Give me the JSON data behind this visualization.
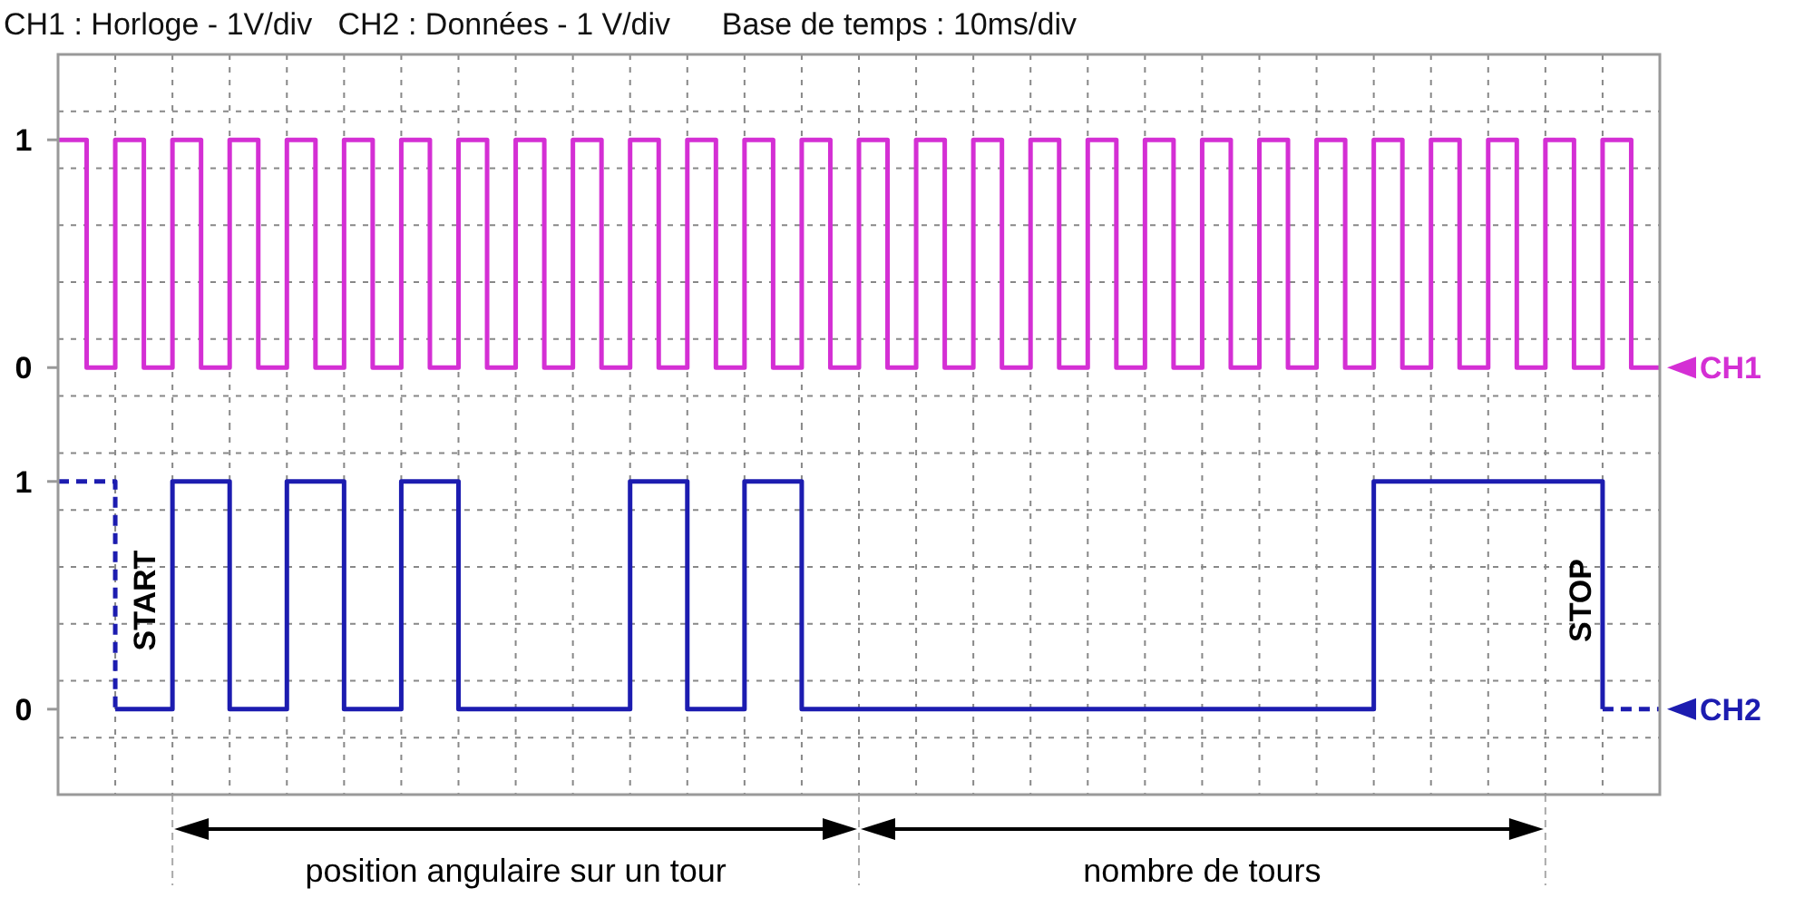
{
  "chart_data": [
    {
      "type": "step",
      "title": "CH1 : Horloge - 1V/div   CH2 : Données - 1 V/div      Base de temps : 10ms/div",
      "categories": [
        null,
        null,
        null,
        null,
        null,
        null,
        null,
        null,
        null,
        null,
        null,
        null,
        null,
        null,
        null,
        null,
        null,
        null,
        null,
        null,
        null,
        null,
        null,
        null,
        null,
        null,
        null,
        null,
        null,
        null,
        null,
        null,
        null,
        null,
        null,
        null,
        null,
        null,
        null,
        null,
        null,
        null,
        null,
        null,
        null,
        null,
        null,
        null,
        null,
        null,
        null,
        null,
        null,
        null,
        null,
        null,
        null
      ],
      "ylim": [
        -0.25,
        1.375
      ],
      "yticks": [
        {
          "value": 1.125,
          "label": null
        },
        {
          "value": 1,
          "label": "1"
        },
        {
          "value": 0.875,
          "label": null
        },
        {
          "value": 0.625,
          "label": null
        },
        {
          "value": 0.375,
          "label": null
        },
        {
          "value": 0.125,
          "label": null
        },
        {
          "value": 0,
          "label": "0"
        },
        {
          "value": -0.125,
          "label": null
        }
      ],
      "grid": true,
      "tick_labels": "y",
      "series": [
        {
          "name": "CH1",
          "color": "#d42fd4",
          "values": [
            1,
            0,
            1,
            0,
            1,
            0,
            1,
            0,
            1,
            0,
            1,
            0,
            1,
            0,
            1,
            0,
            1,
            0,
            1,
            0,
            1,
            0,
            1,
            0,
            1,
            0,
            1,
            0,
            1,
            0,
            1,
            0,
            1,
            0,
            1,
            0,
            1,
            0,
            1,
            0,
            1,
            0,
            1,
            0,
            1,
            0,
            1,
            0,
            1,
            0,
            1,
            0,
            1,
            0,
            1,
            0,
            0
          ]
        }
      ]
    },
    {
      "type": "step",
      "categories": [
        null,
        null,
        null,
        null,
        null,
        null,
        null,
        null,
        null,
        null,
        null,
        null,
        null,
        null,
        null,
        null,
        null,
        null,
        null,
        null,
        null,
        null,
        null,
        null,
        null,
        null,
        null,
        null,
        null,
        null,
        null,
        null,
        null,
        null,
        null,
        null,
        null,
        null,
        null,
        null,
        null,
        null,
        null,
        null,
        null,
        null,
        null,
        null,
        null,
        null,
        null,
        null,
        null,
        null,
        null,
        null,
        null
      ],
      "ylim": [
        -0.375,
        1.25
      ],
      "yticks": [
        {
          "value": 1.125,
          "label": null
        },
        {
          "value": 1,
          "label": "1"
        },
        {
          "value": 0.875,
          "label": null
        },
        {
          "value": 0.625,
          "label": null
        },
        {
          "value": 0.375,
          "label": null
        },
        {
          "value": 0.125,
          "label": null
        },
        {
          "value": 0,
          "label": "0"
        },
        {
          "value": -0.125,
          "label": null
        }
      ],
      "grid": true,
      "tick_labels": "y",
      "series": [
        {
          "name": "CH2",
          "color": "#1c1cb0",
          "values": [
            null,
            null,
            0,
            0,
            1,
            1,
            0,
            0,
            1,
            1,
            0,
            0,
            1,
            1,
            0,
            0,
            0,
            0,
            0,
            0,
            1,
            1,
            0,
            0,
            1,
            1,
            0,
            0,
            0,
            0,
            0,
            0,
            0,
            0,
            0,
            0,
            0,
            0,
            0,
            0,
            0,
            0,
            0,
            0,
            0,
            0,
            1,
            1,
            1,
            1,
            1,
            1,
            1,
            1,
            0,
            null,
            null
          ]
        },
        {
          "color": "#1c1cb0",
          "line_style": "dashed",
          "values": [
            1,
            1,
            0,
            null,
            null,
            null,
            null,
            null,
            null,
            null,
            null,
            null,
            null,
            null,
            null,
            null,
            null,
            null,
            null,
            null,
            null,
            null,
            null,
            null,
            null,
            null,
            null,
            null,
            null,
            null,
            null,
            null,
            null,
            null,
            null,
            null,
            null,
            null,
            null,
            null,
            null,
            null,
            null,
            null,
            null,
            null,
            null,
            null,
            null,
            null,
            null,
            null,
            null,
            null,
            null,
            null,
            null
          ]
        },
        {
          "color": "#1c1cb0",
          "line_style": "dashed",
          "values": [
            null,
            null,
            null,
            null,
            null,
            null,
            null,
            null,
            null,
            null,
            null,
            null,
            null,
            null,
            null,
            null,
            null,
            null,
            null,
            null,
            null,
            null,
            null,
            null,
            null,
            null,
            null,
            null,
            null,
            null,
            null,
            null,
            null,
            null,
            null,
            null,
            null,
            null,
            null,
            null,
            null,
            null,
            null,
            null,
            null,
            null,
            null,
            null,
            null,
            null,
            null,
            null,
            null,
            null,
            0,
            0,
            0
          ]
        }
      ],
      "annotations": [
        "START",
        "STOP",
        "position angulaire sur un tour",
        "nombre de tours"
      ]
    }
  ]
}
